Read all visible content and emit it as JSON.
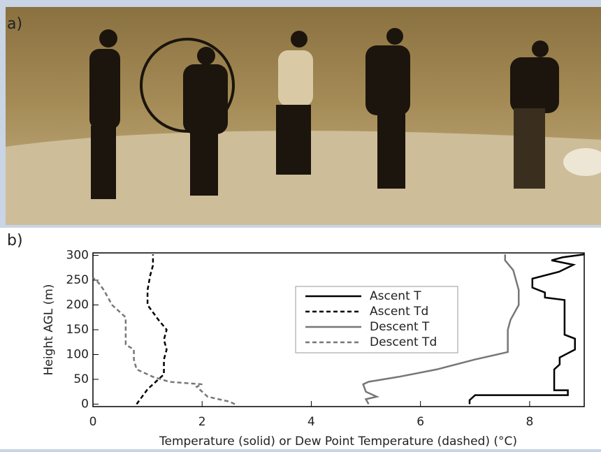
{
  "panel_labels": {
    "a": "a)",
    "b": "b)"
  },
  "chart_data": {
    "type": "line",
    "xlabel": "Temperature (solid) or Dew Point Temperature (dashed) (°C)",
    "ylabel": "Height AGL (m)",
    "xlim": [
      0,
      9
    ],
    "ylim": [
      -5,
      305
    ],
    "xticks": [
      0,
      2,
      4,
      6,
      8
    ],
    "yticks": [
      0,
      50,
      100,
      150,
      200,
      250,
      300
    ],
    "legend": "upper-center",
    "series": [
      {
        "name": "Ascent T",
        "color": "#000000",
        "dash": false,
        "x": [
          6.9,
          6.9,
          7.0,
          8.7,
          8.7,
          8.45,
          8.45,
          8.55,
          8.55,
          8.83,
          8.83,
          8.64,
          8.64,
          8.28,
          8.28,
          8.05,
          8.05,
          8.54,
          8.8,
          8.4,
          8.6,
          9.0
        ],
        "values": [
          0,
          8,
          18,
          18,
          28,
          28,
          70,
          80,
          94,
          110,
          132,
          140,
          210,
          215,
          225,
          235,
          253,
          267,
          281,
          290,
          296,
          302
        ]
      },
      {
        "name": "Ascent Td",
        "color": "#000000",
        "dash": true,
        "x": [
          0.8,
          0.9,
          1.0,
          1.15,
          1.3,
          1.3,
          1.35,
          1.3,
          1.35,
          1.2,
          1.0,
          1.0,
          1.05,
          1.1,
          1.1
        ],
        "values": [
          0,
          15,
          30,
          45,
          60,
          90,
          110,
          130,
          150,
          170,
          200,
          230,
          260,
          280,
          302
        ]
      },
      {
        "name": "Descent T",
        "color": "#777777",
        "dash": false,
        "x": [
          5.05,
          5.0,
          5.2,
          5.0,
          4.95,
          5.05,
          5.6,
          6.3,
          7.0,
          7.6,
          7.6,
          7.65,
          7.8,
          7.8,
          7.7,
          7.55,
          7.55
        ],
        "values": [
          0,
          10,
          15,
          25,
          40,
          45,
          55,
          70,
          90,
          105,
          150,
          170,
          200,
          230,
          270,
          290,
          302
        ]
      },
      {
        "name": "Descent Td",
        "color": "#777777",
        "dash": true,
        "x": [
          2.6,
          2.5,
          2.1,
          2.0,
          1.9,
          2.0,
          1.4,
          1.1,
          0.8,
          0.75,
          0.75,
          0.6,
          0.6,
          0.6,
          0.35,
          0.2,
          0.1,
          0
        ],
        "values": [
          0,
          5,
          15,
          25,
          35,
          40,
          45,
          55,
          70,
          90,
          110,
          120,
          150,
          175,
          200,
          230,
          245,
          255
        ]
      }
    ]
  }
}
